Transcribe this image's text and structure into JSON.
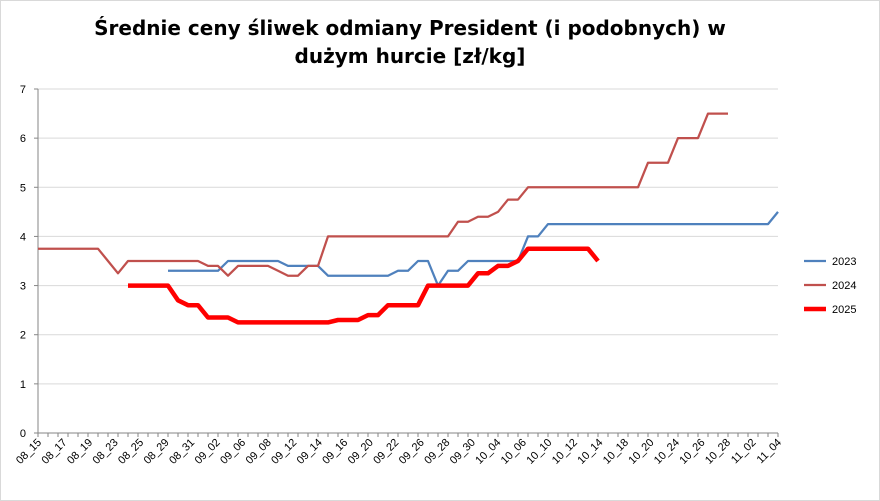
{
  "chart_data": {
    "type": "line",
    "title": "Średnie ceny śliwek odmiany President (i podobnych) w dużym hurcie [zł/kg]",
    "xlabel": "",
    "ylabel": "",
    "ylim": [
      0,
      7
    ],
    "yticks": [
      0,
      1,
      2,
      3,
      4,
      5,
      6,
      7
    ],
    "grid": true,
    "legend": "right",
    "categories": [
      "08_15",
      "08_16",
      "08_17",
      "08_18",
      "08_19",
      "08_20",
      "08_21",
      "08_22",
      "08_23",
      "08_24",
      "08_25",
      "08_26",
      "08_27",
      "08_28",
      "08_29",
      "08_30",
      "08_31",
      "09_01",
      "09_02",
      "09_03",
      "09_04",
      "09_05",
      "09_06",
      "09_07",
      "09_08",
      "09_09",
      "09_10",
      "09_11",
      "09_12",
      "09_13",
      "09_14",
      "09_15",
      "09_16",
      "09_17",
      "09_18",
      "09_19",
      "09_20",
      "09_21",
      "09_22",
      "09_23",
      "09_24",
      "09_25",
      "09_26",
      "09_27",
      "09_28",
      "09_29",
      "09_30",
      "10_03",
      "10_04",
      "10_05",
      "10_06",
      "10_07",
      "10_08",
      "10_09",
      "10_10",
      "10_11",
      "10_12",
      "10_13",
      "10_14",
      "10_15",
      "10_16",
      "10_17",
      "10_18",
      "10_19",
      "10_20",
      "10_21",
      "10_24",
      "10_25",
      "10_26",
      "10_27",
      "10_28",
      "10_31",
      "11_02",
      "11_03",
      "11_04"
    ],
    "tick_labels": [
      "08_15",
      "08_17",
      "08_19",
      "08_23",
      "08_25",
      "08_29",
      "08_31",
      "09_02",
      "09_06",
      "09_08",
      "09_12",
      "09_14",
      "09_16",
      "09_20",
      "09_22",
      "09_26",
      "09_28",
      "09_30",
      "10_04",
      "10_06",
      "10_10",
      "10_12",
      "10_14",
      "10_18",
      "10_20",
      "10_24",
      "10_26",
      "10_28",
      "11_02",
      "11_04"
    ],
    "series": [
      {
        "name": "2023",
        "color": "#4f81bd",
        "values": [
          null,
          null,
          null,
          null,
          null,
          null,
          null,
          null,
          null,
          null,
          null,
          null,
          null,
          3.3,
          3.3,
          3.3,
          3.3,
          3.3,
          3.3,
          3.5,
          3.5,
          3.5,
          3.5,
          3.5,
          3.5,
          3.4,
          3.4,
          3.4,
          3.4,
          3.2,
          3.2,
          3.2,
          3.2,
          3.2,
          3.2,
          3.2,
          3.3,
          3.3,
          3.5,
          3.5,
          3.0,
          3.3,
          3.3,
          3.5,
          3.5,
          3.5,
          3.5,
          3.5,
          3.5,
          4.0,
          4.0,
          4.25,
          4.25,
          4.25,
          4.25,
          4.25,
          4.25,
          4.25,
          4.25,
          4.25,
          4.25,
          4.25,
          4.25,
          4.25,
          4.25,
          4.25,
          4.25,
          4.25,
          4.25,
          4.25,
          4.25,
          4.25,
          4.25,
          4.25,
          4.5
        ]
      },
      {
        "name": "2024",
        "color": "#c0504d",
        "values": [
          3.75,
          3.75,
          3.75,
          3.75,
          3.75,
          3.75,
          3.75,
          3.5,
          3.25,
          3.5,
          3.5,
          3.5,
          3.5,
          3.5,
          3.5,
          3.5,
          3.5,
          3.4,
          3.4,
          3.2,
          3.4,
          3.4,
          3.4,
          3.4,
          3.3,
          3.2,
          3.2,
          3.4,
          3.4,
          4.0,
          4.0,
          4.0,
          4.0,
          4.0,
          4.0,
          4.0,
          4.0,
          4.0,
          4.0,
          4.0,
          4.0,
          4.0,
          4.3,
          4.3,
          4.4,
          4.4,
          4.5,
          4.75,
          4.75,
          5.0,
          5.0,
          5.0,
          5.0,
          5.0,
          5.0,
          5.0,
          5.0,
          5.0,
          5.0,
          5.0,
          5.0,
          5.5,
          5.5,
          5.5,
          6.0,
          6.0,
          6.0,
          6.5,
          6.5,
          6.5,
          null,
          null,
          null,
          null,
          null
        ]
      },
      {
        "name": "2025",
        "color": "#ff0000",
        "values": [
          null,
          null,
          null,
          null,
          null,
          null,
          null,
          null,
          null,
          3.0,
          3.0,
          3.0,
          3.0,
          3.0,
          2.7,
          2.6,
          2.6,
          2.35,
          2.35,
          2.35,
          2.25,
          2.25,
          2.25,
          2.25,
          2.25,
          2.25,
          2.25,
          2.25,
          2.25,
          2.25,
          2.3,
          2.3,
          2.3,
          2.4,
          2.4,
          2.6,
          2.6,
          2.6,
          2.6,
          3.0,
          3.0,
          3.0,
          3.0,
          3.0,
          3.25,
          3.25,
          3.4,
          3.4,
          3.5,
          3.75,
          3.75,
          3.75,
          3.75,
          3.75,
          3.75,
          3.75,
          3.5,
          null,
          null,
          null,
          null,
          null,
          null,
          null,
          null,
          null,
          null,
          null,
          null,
          null,
          null,
          null,
          null,
          null,
          null
        ]
      }
    ]
  }
}
